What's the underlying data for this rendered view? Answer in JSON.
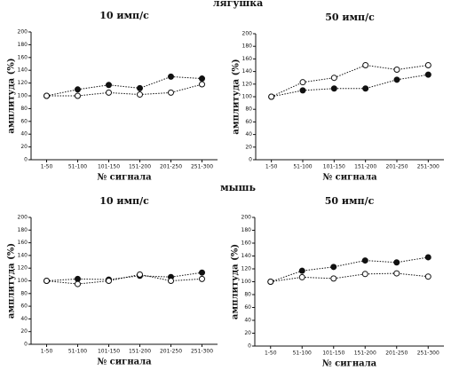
{
  "group_titles": [
    "лягушка",
    "мышь"
  ],
  "chart_data": [
    {
      "type": "line",
      "title": "10 имп/с",
      "xlabel": "№ сигнала",
      "ylabel": "амплитуда (%)",
      "categories": [
        "1-50",
        "51-100",
        "101-150",
        "151-200",
        "201-250",
        "251-300"
      ],
      "series": [
        {
          "color": "#111111",
          "marker": "filled",
          "values": [
            100,
            110,
            117,
            112,
            130,
            127
          ]
        },
        {
          "color": "#111111",
          "marker": "open",
          "values": [
            100,
            100,
            105,
            102,
            105,
            118
          ]
        }
      ],
      "ylim": [
        0,
        200
      ],
      "yticks": [
        0,
        20,
        40,
        60,
        80,
        100,
        120,
        140,
        160,
        180,
        200
      ]
    },
    {
      "type": "line",
      "title": "50 имп/с",
      "xlabel": "№ сигнала",
      "ylabel": "амплитуда (%)",
      "categories": [
        "1-50",
        "51-100",
        "101-150",
        "151-200",
        "201-250",
        "251-300"
      ],
      "series": [
        {
          "color": "#111111",
          "marker": "filled",
          "values": [
            100,
            110,
            113,
            113,
            127,
            135
          ]
        },
        {
          "color": "#111111",
          "marker": "open",
          "values": [
            100,
            123,
            130,
            150,
            143,
            150
          ]
        }
      ],
      "ylim": [
        0,
        200
      ],
      "yticks": [
        0,
        20,
        40,
        60,
        80,
        100,
        120,
        140,
        160,
        180,
        200
      ]
    },
    {
      "type": "line",
      "title": "10 имп/с",
      "xlabel": "№ сигнала",
      "ylabel": "амплитуда (%)",
      "categories": [
        "1-50",
        "51-100",
        "101-150",
        "151-200",
        "201-250",
        "251-300"
      ],
      "series": [
        {
          "color": "#111111",
          "marker": "filled",
          "values": [
            100,
            103,
            102,
            108,
            106,
            113
          ]
        },
        {
          "color": "#111111",
          "marker": "open",
          "values": [
            100,
            95,
            100,
            110,
            100,
            103
          ]
        }
      ],
      "ylim": [
        0,
        200
      ],
      "yticks": [
        0,
        20,
        40,
        60,
        80,
        100,
        120,
        140,
        160,
        180,
        200
      ]
    },
    {
      "type": "line",
      "title": "50 имп/с",
      "xlabel": "№ сигнала",
      "ylabel": "амплитуда (%)",
      "categories": [
        "1-50",
        "51-100",
        "101-150",
        "151-200",
        "201-250",
        "251-300"
      ],
      "series": [
        {
          "color": "#111111",
          "marker": "filled",
          "values": [
            100,
            117,
            123,
            133,
            130,
            138
          ]
        },
        {
          "color": "#111111",
          "marker": "open",
          "values": [
            100,
            107,
            105,
            112,
            113,
            108
          ]
        }
      ],
      "ylim": [
        0,
        200
      ],
      "yticks": [
        0,
        20,
        40,
        60,
        80,
        100,
        120,
        140,
        160,
        180,
        200
      ]
    }
  ]
}
